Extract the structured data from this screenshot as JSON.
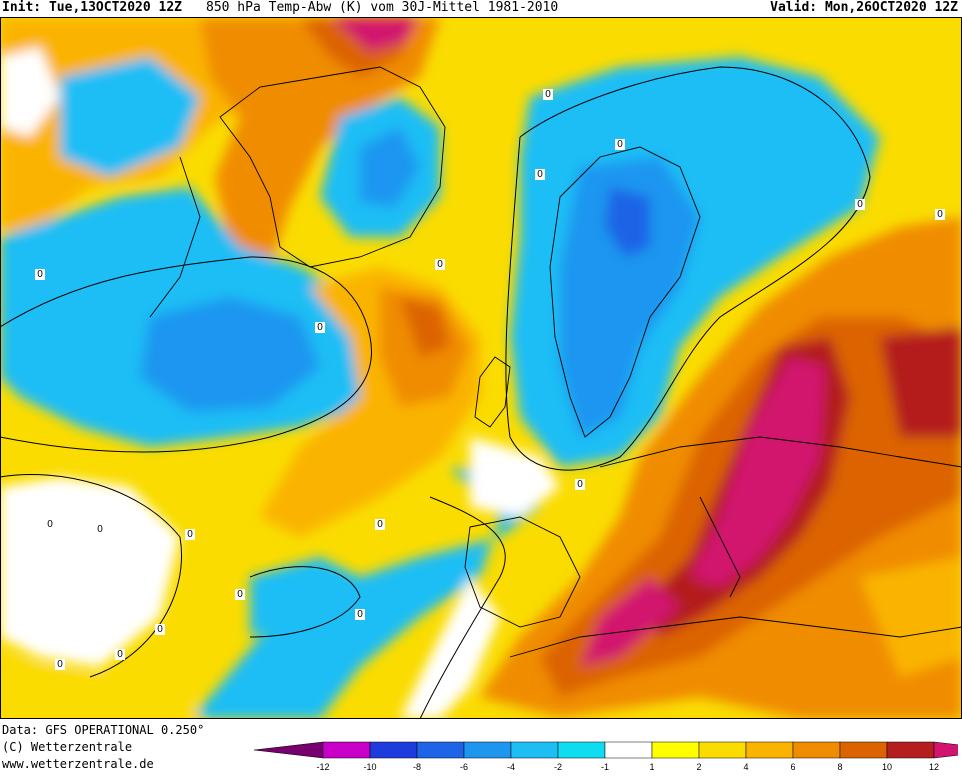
{
  "header": {
    "init": "Init: Tue,13OCT2020 12Z",
    "title": "850 hPa Temp-Abw (K) vom 30J-Mittel 1981-2010",
    "valid": "Valid: Mon,26OCT2020 12Z"
  },
  "footer": {
    "data_source": "Data: GFS OPERATIONAL 0.250°",
    "copyright": "(C) Wetterzentrale",
    "url": "www.wetterzentrale.de"
  },
  "map": {
    "contour_labels": [
      "0",
      "0",
      "0",
      "0",
      "0",
      "0",
      "0",
      "0",
      "0",
      "0",
      "0",
      "0",
      "0",
      "0",
      "0",
      "0",
      "0",
      "0"
    ]
  },
  "legend": {
    "colors": [
      "#78006e",
      "#c800c8",
      "#1e3cdc",
      "#1e64e6",
      "#1e96f0",
      "#1ebef5",
      "#0fdcf0",
      "#ffffff",
      "#ffff00",
      "#fadc00",
      "#fab400",
      "#f08c00",
      "#dc6400",
      "#b41e1e",
      "#d2146e"
    ],
    "ticks": [
      "-12",
      "-10",
      "-8",
      "-6",
      "-4",
      "-2",
      "-1",
      "1",
      "2",
      "4",
      "6",
      "8",
      "10",
      "12"
    ]
  }
}
